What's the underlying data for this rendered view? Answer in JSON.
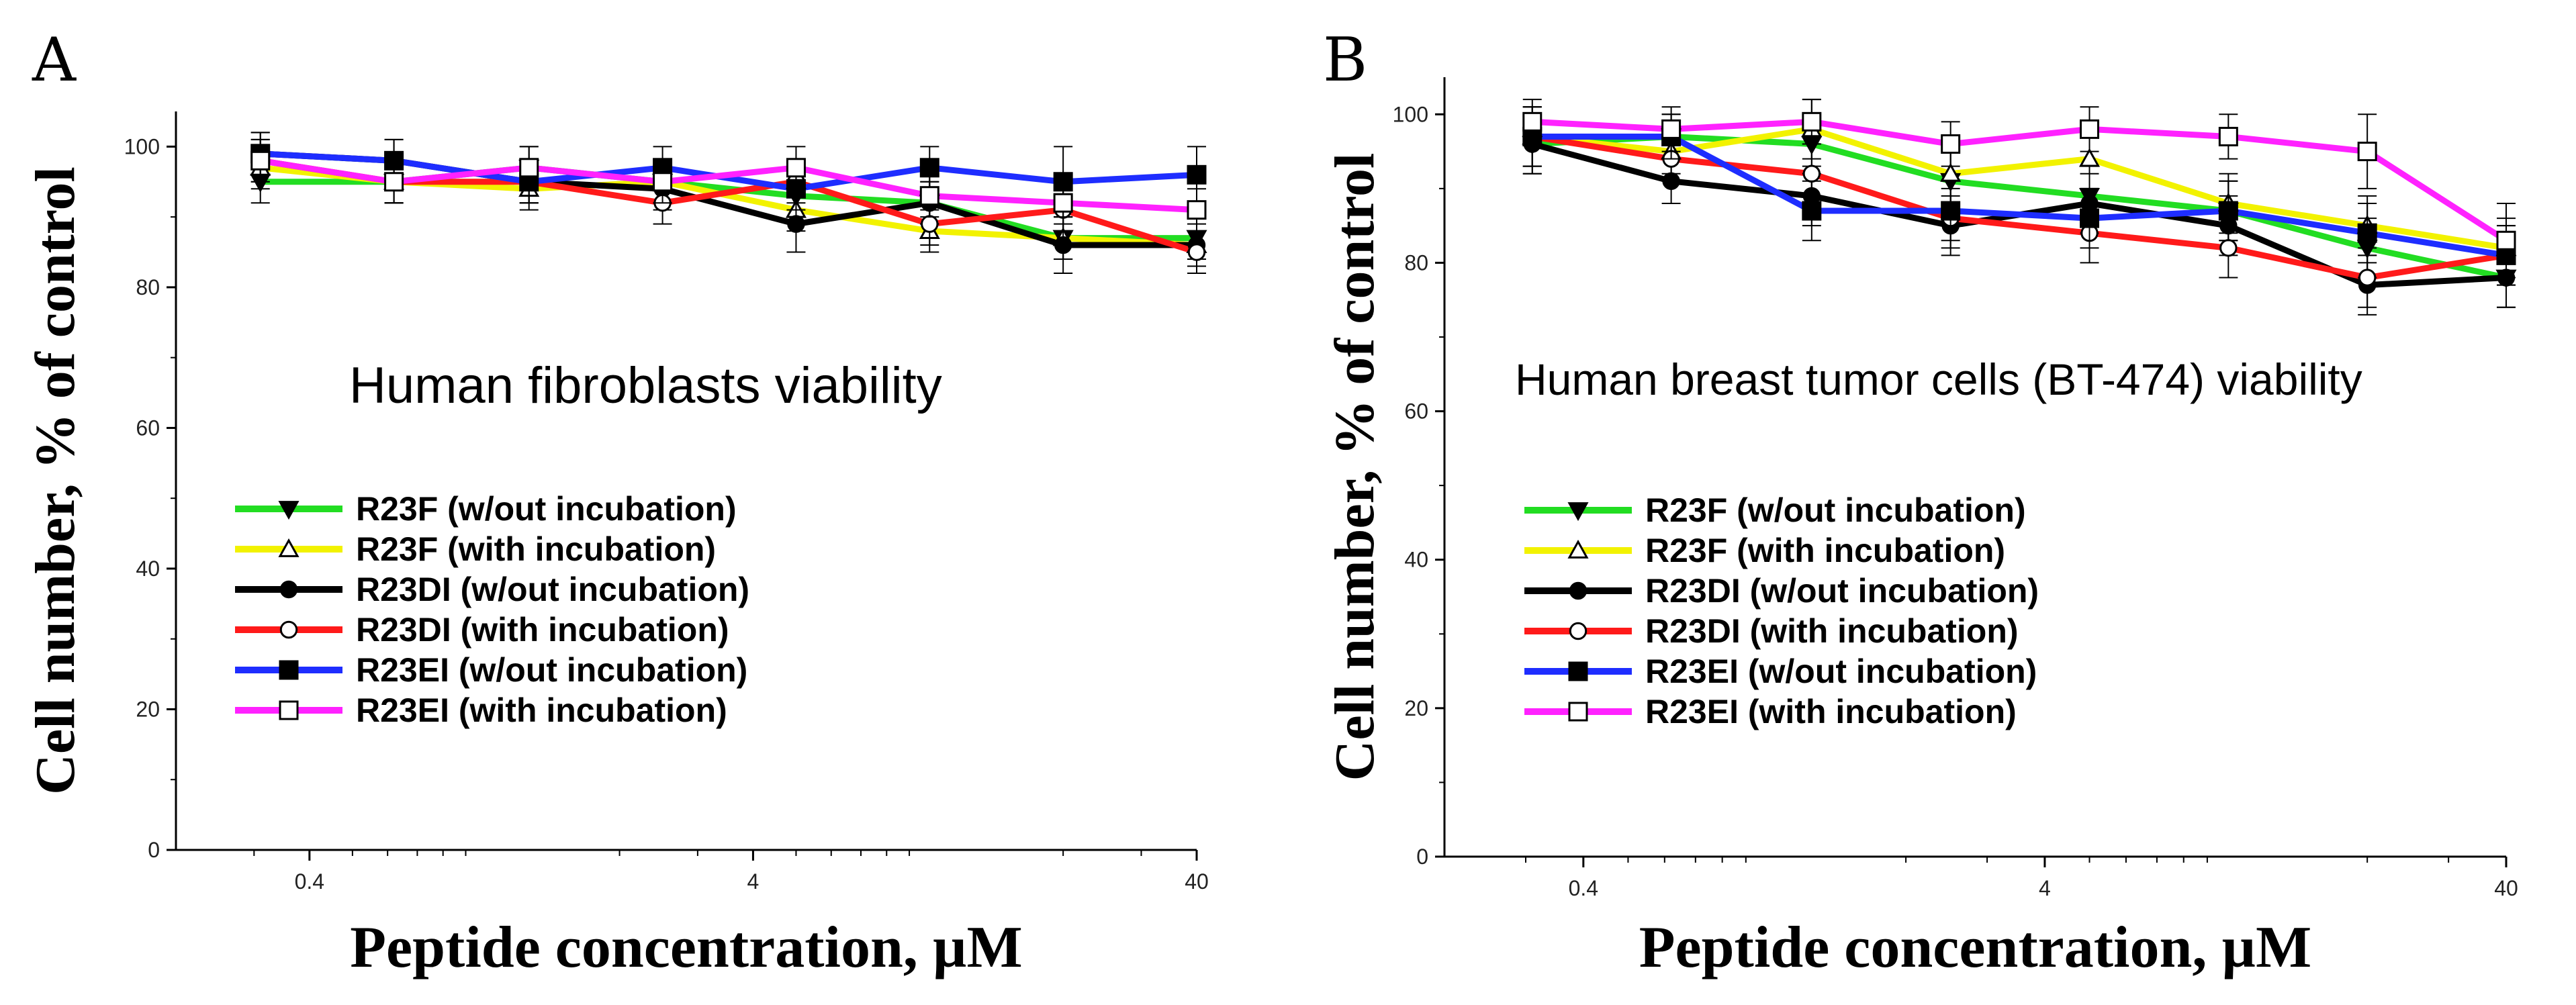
{
  "chart_data": [
    {
      "type": "line",
      "panel_label": "A",
      "annotation": "Human fibroblasts viability",
      "xlabel": "Peptide concentration, µM",
      "ylabel": "Cell number, % of control",
      "xscale": "log",
      "xlim": [
        0.2,
        40
      ],
      "ylim": [
        0,
        105
      ],
      "xticks": [
        "0.4",
        "4",
        "40"
      ],
      "yticks": [
        "0",
        "20",
        "40",
        "60",
        "80",
        "100"
      ],
      "legend_position": "center-left",
      "x": [
        0.31,
        0.62,
        1.25,
        2.5,
        5,
        10,
        20,
        40
      ],
      "series": [
        {
          "name": "R23F (w/out incubation)",
          "color": "#22dd22",
          "marker": "triangle-down-filled",
          "values": [
            95,
            95,
            97,
            95,
            93,
            92,
            87,
            87
          ],
          "errors": [
            3,
            3,
            3,
            3,
            3,
            3,
            3,
            3
          ]
        },
        {
          "name": "R23F (with incubation)",
          "color": "#f2f200",
          "marker": "triangle-up-open",
          "values": [
            97,
            95,
            94,
            95,
            91,
            88,
            87,
            86
          ],
          "errors": [
            3,
            3,
            3,
            3,
            3,
            3,
            3,
            3
          ]
        },
        {
          "name": "R23DI (w/out incubation)",
          "color": "#000000",
          "marker": "circle-filled",
          "values": [
            99,
            98,
            95,
            94,
            89,
            92,
            86,
            86
          ],
          "errors": [
            3,
            3,
            3,
            3,
            4,
            3,
            4,
            4
          ]
        },
        {
          "name": "R23DI (with incubation)",
          "color": "#ff1a1a",
          "marker": "circle-open",
          "values": [
            98,
            95,
            95,
            92,
            95,
            89,
            91,
            85
          ],
          "errors": [
            3,
            3,
            3,
            3,
            3,
            3,
            3,
            3
          ]
        },
        {
          "name": "R23EI (w/out incubation)",
          "color": "#1e2dff",
          "marker": "square-filled",
          "values": [
            99,
            98,
            95,
            97,
            94,
            97,
            95,
            96
          ],
          "errors": [
            3,
            3,
            3,
            3,
            3,
            3,
            5,
            4
          ]
        },
        {
          "name": "R23EI (with incubation)",
          "color": "#ff22ff",
          "marker": "square-open",
          "values": [
            98,
            95,
            97,
            95,
            97,
            93,
            92,
            91
          ],
          "errors": [
            3,
            3,
            3,
            3,
            3,
            3,
            3,
            3
          ]
        }
      ]
    },
    {
      "type": "line",
      "panel_label": "B",
      "annotation": "Human breast tumor cells (BT-474) viability",
      "xlabel": "Peptide concentration, µM",
      "ylabel": "Cell number, % of control",
      "xscale": "log",
      "xlim": [
        0.2,
        40
      ],
      "ylim": [
        0,
        105
      ],
      "xticks": [
        "0.4",
        "4",
        "40"
      ],
      "yticks": [
        "0",
        "20",
        "40",
        "60",
        "80",
        "100"
      ],
      "legend_position": "center-left",
      "x": [
        0.31,
        0.62,
        1.25,
        2.5,
        5,
        10,
        20,
        40
      ],
      "series": [
        {
          "name": "R23F (w/out incubation)",
          "color": "#22dd22",
          "marker": "triangle-down-filled",
          "values": [
            96,
            97,
            96,
            91,
            89,
            87,
            82,
            78
          ],
          "errors": [
            4,
            3,
            4,
            4,
            4,
            4,
            4,
            4
          ]
        },
        {
          "name": "R23F (with incubation)",
          "color": "#f2f200",
          "marker": "triangle-up-open",
          "values": [
            97,
            95,
            98,
            92,
            94,
            88,
            85,
            82
          ],
          "errors": [
            4,
            3,
            4,
            4,
            4,
            4,
            4,
            4
          ]
        },
        {
          "name": "R23DI (w/out incubation)",
          "color": "#000000",
          "marker": "circle-filled",
          "values": [
            96,
            91,
            89,
            85,
            88,
            85,
            77,
            78
          ],
          "errors": [
            4,
            3,
            4,
            4,
            4,
            4,
            4,
            4
          ]
        },
        {
          "name": "R23DI (with incubation)",
          "color": "#ff1a1a",
          "marker": "circle-open",
          "values": [
            97,
            94,
            92,
            86,
            84,
            82,
            78,
            81
          ],
          "errors": [
            4,
            3,
            4,
            4,
            4,
            4,
            4,
            4
          ]
        },
        {
          "name": "R23EI (w/out incubation)",
          "color": "#1e2dff",
          "marker": "square-filled",
          "values": [
            97,
            97,
            87,
            87,
            86,
            87,
            84,
            81
          ],
          "errors": [
            4,
            3,
            4,
            4,
            4,
            4,
            4,
            4
          ]
        },
        {
          "name": "R23EI (with incubation)",
          "color": "#ff22ff",
          "marker": "square-open",
          "values": [
            99,
            98,
            99,
            96,
            98,
            97,
            95,
            83
          ],
          "errors": [
            3,
            3,
            3,
            3,
            3,
            3,
            5,
            5
          ]
        }
      ]
    }
  ]
}
